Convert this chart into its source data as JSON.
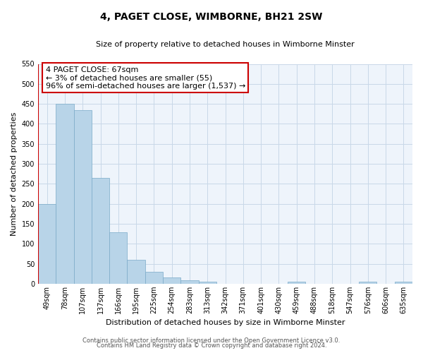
{
  "title": "4, PAGET CLOSE, WIMBORNE, BH21 2SW",
  "subtitle": "Size of property relative to detached houses in Wimborne Minster",
  "xlabel": "Distribution of detached houses by size in Wimborne Minster",
  "ylabel": "Number of detached properties",
  "bin_labels": [
    "49sqm",
    "78sqm",
    "107sqm",
    "137sqm",
    "166sqm",
    "195sqm",
    "225sqm",
    "254sqm",
    "283sqm",
    "313sqm",
    "342sqm",
    "371sqm",
    "401sqm",
    "430sqm",
    "459sqm",
    "488sqm",
    "518sqm",
    "547sqm",
    "576sqm",
    "606sqm",
    "635sqm"
  ],
  "bar_values": [
    200,
    450,
    435,
    265,
    128,
    60,
    30,
    15,
    8,
    5,
    0,
    0,
    0,
    0,
    5,
    0,
    0,
    0,
    5,
    0,
    5
  ],
  "bar_color": "#b8d4e8",
  "bar_edge_color": "#7aaac8",
  "highlight_line_color": "#cc0000",
  "highlight_bar_index": 0,
  "ylim": [
    0,
    550
  ],
  "yticks": [
    0,
    50,
    100,
    150,
    200,
    250,
    300,
    350,
    400,
    450,
    500,
    550
  ],
  "property_size": "67sqm",
  "property_name": "4 PAGET CLOSE",
  "pct_smaller": "3%",
  "n_smaller": 55,
  "pct_larger": "96%",
  "n_larger": 1537,
  "footer_line1": "Contains HM Land Registry data © Crown copyright and database right 2024.",
  "footer_line2": "Contains public sector information licensed under the Open Government Licence v3.0.",
  "background_color": "#ffffff",
  "plot_bg_color": "#eef4fb",
  "grid_color": "#c8d8e8",
  "title_fontsize": 10,
  "subtitle_fontsize": 8,
  "ylabel_fontsize": 8,
  "xlabel_fontsize": 8,
  "tick_fontsize": 7,
  "annotation_fontsize": 8,
  "footer_fontsize": 6
}
